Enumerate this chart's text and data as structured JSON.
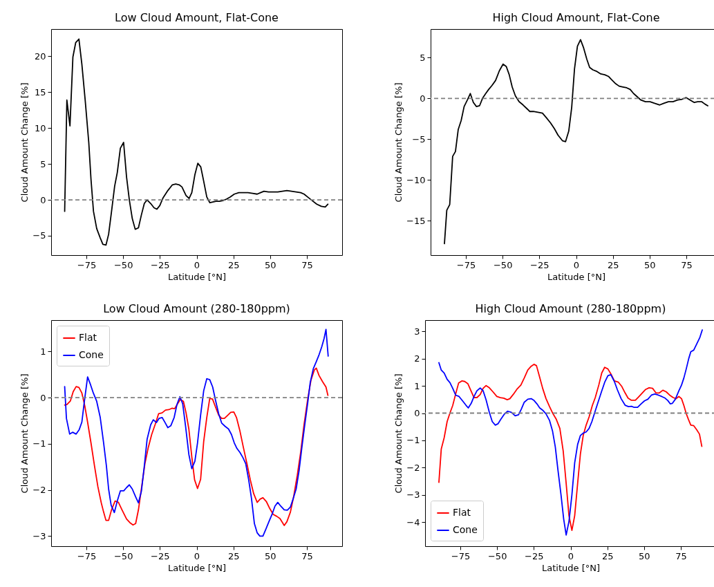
{
  "chart_data": [
    {
      "type": "line",
      "title": "Low Cloud Amount, Flat-Cone",
      "xlabel": "Latitude [°N]",
      "ylabel": "Cloud Amount Change [%]",
      "xlim": [
        -99,
        99
      ],
      "ylim": [
        -7.7,
        23.8
      ],
      "xticks": [
        -75,
        -50,
        -25,
        0,
        25,
        50,
        75
      ],
      "yticks": [
        -5,
        0,
        5,
        10,
        15,
        20
      ],
      "ref_lines": [
        {
          "axis": "y",
          "value": 0,
          "color": "#808080",
          "line_style": "dashed"
        }
      ],
      "series": [
        {
          "color": "#000000",
          "x": [
            -89.8,
            -88.3,
            -86.2,
            -84.2,
            -82.3,
            -80.1,
            -78.1,
            -75.8,
            -73.4,
            -71.9,
            -70.2,
            -68.0,
            -65.6,
            -63.8,
            -61.7,
            -59.9,
            -57.9,
            -55.8,
            -54.0,
            -51.9,
            -49.7,
            -47.7,
            -45.8,
            -43.8,
            -41.8,
            -39.6,
            -37.6,
            -35.6,
            -33.7,
            -31.3,
            -29.0,
            -27.1,
            -25.1,
            -22.8,
            -19.6,
            -16.5,
            -14.2,
            -11.9,
            -10.0,
            -7.2,
            -5.1,
            -3.3,
            -1.2,
            0.8,
            2.8,
            4.8,
            6.9,
            9.0,
            11.1,
            13.1,
            15.4,
            17.8,
            20.3,
            22.8,
            25.6,
            28.7,
            31.8,
            34.9,
            38.0,
            41.2,
            43.5,
            45.8,
            48.9,
            52.1,
            55.2,
            58.3,
            61.4,
            64.6,
            67.7,
            70.8,
            73.1,
            75.5,
            78.6,
            81.7,
            84.8,
            87.5,
            89.3
          ],
          "values": [
            -1.6,
            13.9,
            10.3,
            19.9,
            21.9,
            22.4,
            18.9,
            13.8,
            8.0,
            2.9,
            -1.6,
            -4.0,
            -5.3,
            -6.2,
            -6.3,
            -4.8,
            -1.6,
            1.9,
            3.8,
            7.2,
            8.0,
            3.2,
            0,
            -2.6,
            -4.1,
            -3.9,
            -2.1,
            -0.5,
            0.0,
            -0.5,
            -1.1,
            -1.3,
            -0.8,
            0.3,
            1.3,
            2.1,
            2.2,
            2.1,
            1.8,
            0.6,
            0.2,
            1.0,
            3.5,
            5.1,
            4.6,
            2.6,
            0.4,
            -0.4,
            -0.3,
            -0.2,
            -0.2,
            -0.1,
            0.1,
            0.4,
            0.8,
            1.0,
            1.0,
            1.0,
            0.9,
            0.8,
            1.0,
            1.2,
            1.1,
            1.1,
            1.1,
            1.2,
            1.3,
            1.2,
            1.1,
            1.0,
            0.8,
            0.4,
            -0.1,
            -0.6,
            -0.9,
            -1.0,
            -0.6
          ]
        }
      ]
    },
    {
      "type": "line",
      "title": "High Cloud Amount, Flat-Cone",
      "xlabel": "Latitude [°N]",
      "ylabel": "Cloud Amount Change [%]",
      "xlim": [
        -99,
        99
      ],
      "ylim": [
        -19.2,
        8.5
      ],
      "xticks": [
        -75,
        -50,
        -25,
        0,
        25,
        50,
        75
      ],
      "yticks": [
        -15,
        -10,
        -5,
        0,
        5
      ],
      "ref_lines": [
        {
          "axis": "y",
          "value": 0,
          "color": "#808080",
          "line_style": "dashed"
        }
      ],
      "series": [
        {
          "color": "#000000",
          "x": [
            -89.6,
            -88.0,
            -86.0,
            -84.0,
            -82.1,
            -80.2,
            -78.2,
            -76.2,
            -74.0,
            -72.0,
            -69.9,
            -67.8,
            -65.7,
            -63.7,
            -61.5,
            -59.5,
            -57.2,
            -54.8,
            -52.2,
            -49.7,
            -47.5,
            -45.5,
            -43.5,
            -41.3,
            -38.8,
            -36.1,
            -33.8,
            -31.5,
            -29.1,
            -26.0,
            -22.9,
            -20.1,
            -17.4,
            -14.8,
            -12.3,
            -9.2,
            -7.2,
            -5.0,
            -3.0,
            -1.1,
            0.9,
            3.0,
            5.1,
            7.3,
            9.2,
            11.4,
            14.2,
            16.8,
            19.5,
            22.0,
            24.1,
            26.9,
            29.3,
            31.9,
            34.4,
            36.8,
            39.1,
            41.6,
            44.1,
            47.2,
            50.3,
            53.4,
            56.9,
            59.7,
            62.8,
            65.9,
            69.0,
            72.1,
            74.9,
            77.6,
            80.4,
            82.7,
            85.4,
            87.7,
            89.6
          ],
          "values": [
            -17.8,
            -13.7,
            -13.0,
            -7.1,
            -6.5,
            -3.8,
            -2.7,
            -1.0,
            -0.2,
            0.6,
            -0.5,
            -1.0,
            -0.9,
            0,
            0.6,
            1.1,
            1.6,
            2.2,
            3.4,
            4.2,
            3.9,
            2.9,
            1.4,
            0.3,
            -0.4,
            -0.8,
            -1.2,
            -1.6,
            -1.6,
            -1.7,
            -1.8,
            -2.4,
            -3.0,
            -3.7,
            -4.5,
            -5.2,
            -5.3,
            -4.0,
            -1.1,
            3.6,
            6.4,
            7.2,
            6.2,
            4.8,
            3.8,
            3.5,
            3.3,
            3.0,
            2.9,
            2.7,
            2.3,
            1.8,
            1.5,
            1.4,
            1.3,
            1.1,
            0.6,
            0.2,
            -0.2,
            -0.4,
            -0.4,
            -0.6,
            -0.8,
            -0.6,
            -0.4,
            -0.4,
            -0.2,
            -0.1,
            0.1,
            -0.2,
            -0.5,
            -0.4,
            -0.4,
            -0.7,
            -0.9
          ]
        }
      ]
    },
    {
      "type": "line",
      "title": "Low Cloud Amount (280-180ppm)",
      "xlabel": "Latitude [°N]",
      "ylabel": "Cloud Amount Change [%]",
      "xlim": [
        -99,
        99
      ],
      "ylim": [
        -3.22,
        1.68
      ],
      "xticks": [
        -75,
        -50,
        -25,
        0,
        25,
        50,
        75
      ],
      "yticks": [
        -3,
        -2,
        -1,
        0,
        1
      ],
      "legend": "top left",
      "ref_lines": [
        {
          "axis": "y",
          "value": 0,
          "color": "#808080",
          "line_style": "dashed"
        }
      ],
      "series": [
        {
          "name": "Flat",
          "color": "#ff0000",
          "x": [
            -89.8,
            -88.3,
            -85.9,
            -84.0,
            -82.0,
            -80.1,
            -78.1,
            -76.1,
            -74.2,
            -71.9,
            -69.5,
            -67.2,
            -64.9,
            -63.3,
            -61.7,
            -59.9,
            -57.9,
            -55.5,
            -53.2,
            -50.8,
            -47.7,
            -45.4,
            -43.3,
            -41.5,
            -39.6,
            -37.6,
            -35.2,
            -32.9,
            -30.6,
            -28.2,
            -25.9,
            -23.5,
            -21.2,
            -18.9,
            -16.8,
            -15.0,
            -12.9,
            -11.1,
            -9.0,
            -7.2,
            -5.3,
            -3.3,
            -1.4,
            0.6,
            2.7,
            4.8,
            6.9,
            8.9,
            10.8,
            12.8,
            15.0,
            17.0,
            18.9,
            20.9,
            23.2,
            25.3,
            27.1,
            29.5,
            31.8,
            34.2,
            36.5,
            38.8,
            41.2,
            43.2,
            45.1,
            47.4,
            49.7,
            52.1,
            54.4,
            56.7,
            59.6,
            61.4,
            63.8,
            66.1,
            68.5,
            70.8,
            73.1,
            75.5,
            77.8,
            80.1,
            81.4,
            83.3,
            85.6,
            88.0,
            89.3
          ],
          "values": [
            -0.16,
            -0.15,
            -0.07,
            0.13,
            0.24,
            0.22,
            0.1,
            -0.18,
            -0.53,
            -0.98,
            -1.48,
            -1.93,
            -2.28,
            -2.48,
            -2.66,
            -2.66,
            -2.43,
            -2.24,
            -2.27,
            -2.43,
            -2.63,
            -2.71,
            -2.76,
            -2.73,
            -2.43,
            -1.98,
            -1.43,
            -1.08,
            -0.8,
            -0.58,
            -0.35,
            -0.33,
            -0.27,
            -0.26,
            -0.23,
            -0.24,
            -0.13,
            -0.04,
            -0.08,
            -0.33,
            -0.68,
            -1.28,
            -1.78,
            -1.97,
            -1.77,
            -0.95,
            -0.43,
            -0.02,
            -0.03,
            -0.2,
            -0.38,
            -0.45,
            -0.45,
            -0.39,
            -0.32,
            -0.31,
            -0.43,
            -0.73,
            -1.08,
            -1.43,
            -1.78,
            -2.08,
            -2.27,
            -2.2,
            -2.17,
            -2.25,
            -2.4,
            -2.53,
            -2.57,
            -2.62,
            -2.77,
            -2.69,
            -2.48,
            -2.13,
            -1.68,
            -1.18,
            -0.58,
            -0.05,
            0.38,
            0.6,
            0.64,
            0.48,
            0.35,
            0.23,
            0.05
          ]
        },
        {
          "name": "Cone",
          "color": "#0000ff",
          "x": [
            -89.8,
            -88.6,
            -86.4,
            -84.4,
            -82.0,
            -80.0,
            -78.1,
            -76.6,
            -74.2,
            -72.2,
            -70.3,
            -68.0,
            -65.6,
            -63.3,
            -61.4,
            -59.9,
            -58.2,
            -56.0,
            -54.0,
            -51.9,
            -49.6,
            -47.7,
            -45.8,
            -43.8,
            -41.5,
            -39.6,
            -37.6,
            -35.6,
            -33.7,
            -31.3,
            -29.5,
            -27.4,
            -25.6,
            -23.5,
            -21.5,
            -19.6,
            -17.6,
            -15.3,
            -13.4,
            -11.4,
            -9.5,
            -7.5,
            -5.3,
            -3.3,
            -1.2,
            0.6,
            2.7,
            4.8,
            6.9,
            8.9,
            10.9,
            12.8,
            15.0,
            17.0,
            19.3,
            21.7,
            23.7,
            25.6,
            27.4,
            29.5,
            31.5,
            33.4,
            35.4,
            37.3,
            39.3,
            41.2,
            43.0,
            45.1,
            47.1,
            49.3,
            51.3,
            53.3,
            55.2,
            57.2,
            59.6,
            61.7,
            63.8,
            65.8,
            67.7,
            69.7,
            71.6,
            73.6,
            75.5,
            77.3,
            79.4,
            81.4,
            83.3,
            85.1,
            86.7,
            88.0,
            89.5
          ],
          "values": [
            0.24,
            -0.45,
            -0.79,
            -0.75,
            -0.79,
            -0.7,
            -0.53,
            -0.13,
            0.45,
            0.28,
            0.1,
            -0.08,
            -0.43,
            -0.98,
            -1.48,
            -1.98,
            -2.33,
            -2.49,
            -2.24,
            -2.02,
            -2.02,
            -1.95,
            -1.89,
            -1.98,
            -2.15,
            -2.28,
            -2.03,
            -1.48,
            -0.9,
            -0.59,
            -0.48,
            -0.54,
            -0.45,
            -0.43,
            -0.54,
            -0.65,
            -0.61,
            -0.43,
            -0.15,
            0.02,
            -0.13,
            -0.63,
            -1.23,
            -1.54,
            -1.38,
            -0.98,
            -0.38,
            0.15,
            0.41,
            0.39,
            0.23,
            -0.05,
            -0.35,
            -0.55,
            -0.62,
            -0.68,
            -0.8,
            -0.98,
            -1.1,
            -1.19,
            -1.3,
            -1.43,
            -1.78,
            -2.18,
            -2.73,
            -2.93,
            -3.0,
            -3.0,
            -2.85,
            -2.68,
            -2.53,
            -2.35,
            -2.27,
            -2.35,
            -2.43,
            -2.44,
            -2.37,
            -2.18,
            -1.98,
            -1.58,
            -1.08,
            -0.58,
            -0.13,
            0.33,
            0.63,
            0.78,
            0.93,
            1.1,
            1.28,
            1.48,
            0.9
          ]
        }
      ]
    },
    {
      "type": "line",
      "title": "High Cloud Amount (280-180ppm)",
      "xlabel": "Latitude [°N]",
      "ylabel": "Cloud Amount Change [%]",
      "xlim": [
        -99,
        99
      ],
      "ylim": [
        -4.88,
        3.41
      ],
      "xticks": [
        -75,
        -50,
        -25,
        0,
        25,
        50,
        75
      ],
      "yticks": [
        -4,
        -3,
        -2,
        -1,
        0,
        1,
        2,
        3
      ],
      "legend": "bottom left",
      "ref_lines": [
        {
          "axis": "y",
          "value": 0,
          "color": "#808080",
          "line_style": "dashed"
        }
      ],
      "series": [
        {
          "name": "Flat",
          "color": "#ff0000",
          "x": [
            -89.6,
            -88.0,
            -86.0,
            -84.0,
            -82.1,
            -80.2,
            -78.2,
            -76.2,
            -74.0,
            -72.0,
            -69.9,
            -67.8,
            -65.7,
            -63.7,
            -61.5,
            -59.5,
            -57.5,
            -55.3,
            -52.8,
            -50.2,
            -47.8,
            -45.5,
            -43.1,
            -41.3,
            -38.8,
            -36.6,
            -33.8,
            -31.5,
            -29.1,
            -26.8,
            -24.9,
            -23.2,
            -21.3,
            -19.0,
            -16.7,
            -14.3,
            -12.0,
            -9.7,
            -7.3,
            -5.0,
            -3.0,
            -1.1,
            0.9,
            2.8,
            4.8,
            6.7,
            8.6,
            10.6,
            12.6,
            14.8,
            16.8,
            19.2,
            21.2,
            23.2,
            25.4,
            27.4,
            29.8,
            32.4,
            34.7,
            37.1,
            39.1,
            41.4,
            44.1,
            46.4,
            48.8,
            51.1,
            53.4,
            55.8,
            58.1,
            60.4,
            62.8,
            65.1,
            67.4,
            69.8,
            71.8,
            73.7,
            75.5,
            77.1,
            78.7,
            80.2,
            81.8,
            83.8,
            85.8,
            87.7,
            89.3
          ],
          "values": [
            -2.54,
            -1.32,
            -0.9,
            -0.31,
            0,
            0.28,
            0.7,
            1.1,
            1.18,
            1.16,
            1.08,
            0.82,
            0.57,
            0.57,
            0.68,
            0.91,
            1.01,
            0.93,
            0.78,
            0.61,
            0.57,
            0.55,
            0.49,
            0.53,
            0.7,
            0.87,
            1.03,
            1.29,
            1.58,
            1.72,
            1.79,
            1.74,
            1.37,
            0.91,
            0.53,
            0.24,
            -0.02,
            -0.23,
            -0.56,
            -1.4,
            -2.58,
            -3.76,
            -4.3,
            -3.76,
            -2.58,
            -1.49,
            -0.82,
            -0.44,
            -0.14,
            0.28,
            0.57,
            1.03,
            1.47,
            1.68,
            1.62,
            1.44,
            1.18,
            1.14,
            0.99,
            0.74,
            0.55,
            0.47,
            0.47,
            0.6,
            0.74,
            0.87,
            0.93,
            0.91,
            0.74,
            0.74,
            0.84,
            0.78,
            0.66,
            0.57,
            0.53,
            0.61,
            0.53,
            0.28,
            -0.02,
            -0.23,
            -0.44,
            -0.46,
            -0.61,
            -0.77,
            -1.22
          ]
        },
        {
          "name": "Cone",
          "color": "#0000ff",
          "x": [
            -89.6,
            -88.0,
            -86.0,
            -84.0,
            -82.1,
            -80.2,
            -78.2,
            -75.9,
            -73.5,
            -71.2,
            -69.6,
            -67.6,
            -65.7,
            -63.7,
            -61.5,
            -59.5,
            -57.5,
            -55.3,
            -53.3,
            -51.2,
            -49.4,
            -47.5,
            -45.0,
            -42.8,
            -40.3,
            -37.7,
            -35.4,
            -33.5,
            -31.5,
            -29.1,
            -26.8,
            -24.8,
            -22.9,
            -21.0,
            -19.0,
            -16.7,
            -14.3,
            -12.3,
            -10.4,
            -8.6,
            -6.5,
            -4.7,
            -3.0,
            -1.1,
            0.9,
            2.8,
            4.8,
            6.7,
            8.6,
            10.6,
            12.6,
            14.5,
            16.5,
            18.7,
            21.0,
            23.2,
            25.4,
            27.4,
            29.8,
            31.9,
            34.4,
            37.1,
            39.4,
            41.4,
            43.3,
            45.6,
            48.0,
            50.3,
            52.6,
            55.0,
            57.3,
            59.7,
            62.0,
            64.3,
            66.2,
            67.8,
            69.3,
            71.3,
            73.7,
            75.5,
            77.1,
            78.7,
            80.4,
            81.8,
            83.8,
            85.8,
            88.0,
            89.6
          ],
          "values": [
            1.85,
            1.58,
            1.47,
            1.24,
            1.12,
            0.91,
            0.66,
            0.61,
            0.45,
            0.29,
            0.19,
            0.36,
            0.61,
            0.82,
            0.92,
            0.82,
            0.49,
            0.03,
            -0.31,
            -0.44,
            -0.39,
            -0.23,
            -0.03,
            0.07,
            0.03,
            -0.1,
            -0.06,
            0.15,
            0.4,
            0.51,
            0.53,
            0.46,
            0.34,
            0.19,
            0.11,
            -0.03,
            -0.27,
            -0.65,
            -1.24,
            -2.08,
            -3.0,
            -3.88,
            -4.47,
            -3.97,
            -3.0,
            -1.82,
            -1.15,
            -0.82,
            -0.73,
            -0.69,
            -0.56,
            -0.31,
            0.03,
            0.4,
            0.78,
            1.13,
            1.37,
            1.41,
            1.16,
            0.85,
            0.53,
            0.29,
            0.24,
            0.25,
            0.21,
            0.21,
            0.34,
            0.45,
            0.51,
            0.66,
            0.7,
            0.66,
            0.61,
            0.55,
            0.46,
            0.34,
            0.36,
            0.51,
            0.82,
            1.03,
            1.29,
            1.62,
            2.0,
            2.25,
            2.31,
            2.53,
            2.78,
            3.05
          ]
        }
      ]
    }
  ]
}
